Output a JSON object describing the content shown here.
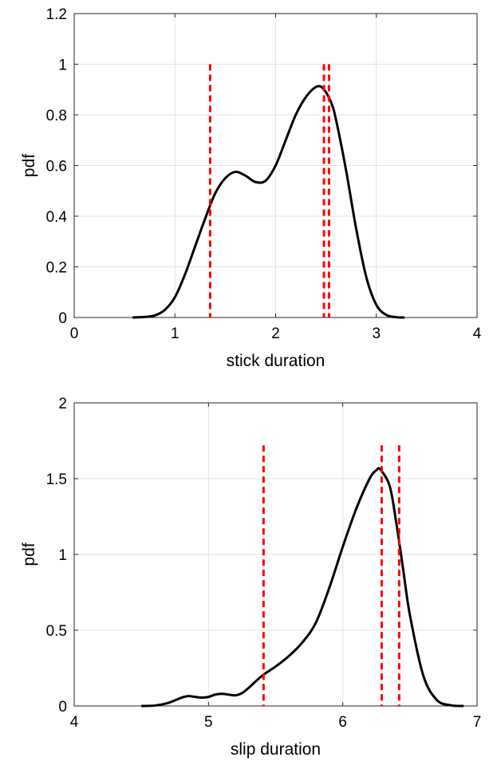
{
  "colors": {
    "curve": "#000000",
    "marker": "#ff0000",
    "grid": "#e3e3e3",
    "axis": "#262626"
  },
  "chart_data": [
    {
      "type": "line",
      "xlabel": "stick duration",
      "ylabel": "pdf",
      "xlim": [
        0,
        4
      ],
      "ylim": [
        0,
        1.2
      ],
      "xticks": [
        "0",
        "1",
        "2",
        "3",
        "4"
      ],
      "xtick_values": [
        0,
        1,
        2,
        3,
        4
      ],
      "yticks": [
        "0",
        "0.2",
        "0.4",
        "0.6",
        "0.8",
        "1",
        "1.2"
      ],
      "ytick_values": [
        0,
        0.2,
        0.4,
        0.6,
        0.8,
        1.0,
        1.2
      ],
      "grid": true,
      "series": [
        {
          "style": "solid",
          "x": [
            0.58,
            0.7,
            0.8,
            0.9,
            1.0,
            1.1,
            1.2,
            1.3,
            1.4,
            1.5,
            1.6,
            1.7,
            1.8,
            1.9,
            2.0,
            2.1,
            2.2,
            2.3,
            2.4,
            2.47,
            2.55,
            2.6,
            2.7,
            2.8,
            2.9,
            3.0,
            3.1,
            3.2,
            3.28
          ],
          "y": [
            0.0,
            0.002,
            0.008,
            0.03,
            0.08,
            0.17,
            0.28,
            0.39,
            0.49,
            0.55,
            0.575,
            0.56,
            0.535,
            0.54,
            0.6,
            0.7,
            0.8,
            0.87,
            0.91,
            0.905,
            0.85,
            0.78,
            0.58,
            0.35,
            0.16,
            0.05,
            0.01,
            0.001,
            0.0
          ]
        }
      ],
      "vertical_lines": {
        "style": "dashed",
        "x": [
          1.35,
          2.48,
          2.53
        ],
        "y_top": 1.0
      }
    },
    {
      "type": "line",
      "xlabel": "slip duration",
      "ylabel": "pdf",
      "xlim": [
        4,
        7
      ],
      "ylim": [
        0,
        2
      ],
      "xticks": [
        "4",
        "5",
        "6",
        "7"
      ],
      "xtick_values": [
        4,
        5,
        6,
        7
      ],
      "yticks": [
        "0",
        "0.5",
        "1",
        "1.5",
        "2"
      ],
      "ytick_values": [
        0,
        0.5,
        1.0,
        1.5,
        2.0
      ],
      "grid": true,
      "series": [
        {
          "style": "solid",
          "x": [
            4.5,
            4.6,
            4.7,
            4.8,
            4.85,
            4.9,
            4.95,
            5.0,
            5.05,
            5.1,
            5.15,
            5.2,
            5.25,
            5.3,
            5.4,
            5.5,
            5.6,
            5.7,
            5.8,
            5.9,
            6.0,
            6.1,
            6.2,
            6.25,
            6.28,
            6.35,
            6.4,
            6.45,
            6.5,
            6.6,
            6.7,
            6.8,
            6.9
          ],
          "y": [
            0.0,
            0.003,
            0.02,
            0.055,
            0.065,
            0.06,
            0.055,
            0.06,
            0.075,
            0.08,
            0.075,
            0.07,
            0.085,
            0.12,
            0.2,
            0.26,
            0.33,
            0.42,
            0.55,
            0.78,
            1.05,
            1.3,
            1.5,
            1.555,
            1.56,
            1.45,
            1.2,
            0.9,
            0.6,
            0.2,
            0.04,
            0.005,
            0.0
          ]
        }
      ],
      "vertical_lines": {
        "style": "dashed",
        "x": [
          5.41,
          6.29,
          6.42
        ],
        "y_top": 1.72
      }
    }
  ]
}
